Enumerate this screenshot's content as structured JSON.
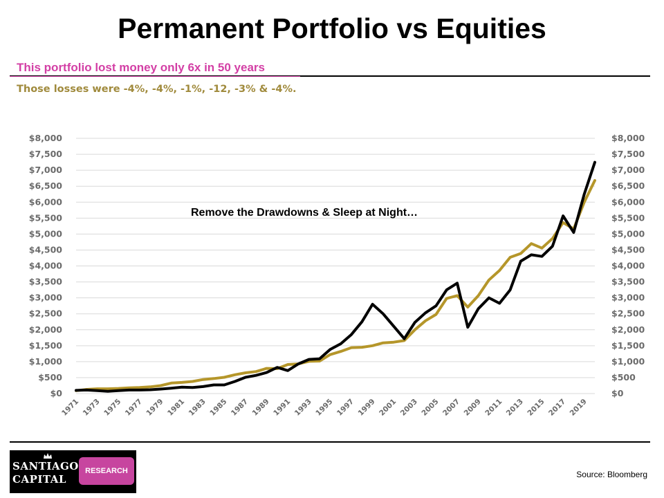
{
  "header": {
    "title": "Permanent Portfolio vs Equities",
    "subtitle": "This portfolio lost money only 6x in 50 years",
    "note": "Those losses were -4%, -4%, -1%,  -12, -3% & -4%."
  },
  "footer": {
    "logo_line1": "Santiago",
    "logo_line2": "Capital",
    "logo_badge": "RESEARCH",
    "source": "Source:  Bloomberg"
  },
  "colors": {
    "equities": "#000000",
    "permanent_portfolio": "#b5962a",
    "subtitle": "#d33fa5",
    "note": "#a08a3c"
  },
  "chart_data": {
    "type": "line",
    "annotation": "Remove the Drawdowns & Sleep at Night…",
    "x": [
      1971,
      1972,
      1973,
      1974,
      1975,
      1976,
      1977,
      1978,
      1979,
      1980,
      1981,
      1982,
      1983,
      1984,
      1985,
      1986,
      1987,
      1988,
      1989,
      1990,
      1991,
      1992,
      1993,
      1994,
      1995,
      1996,
      1997,
      1998,
      1999,
      2000,
      2001,
      2002,
      2003,
      2004,
      2005,
      2006,
      2007,
      2008,
      2009,
      2010,
      2011,
      2012,
      2013,
      2014,
      2015,
      2016,
      2017,
      2018,
      2019,
      2020
    ],
    "xticks": [
      "1971",
      "1973",
      "1975",
      "1977",
      "1979",
      "1981",
      "1983",
      "1985",
      "1987",
      "1989",
      "1991",
      "1993",
      "1995",
      "1997",
      "1999",
      "2001",
      "2003",
      "2005",
      "2007",
      "2009",
      "2011",
      "2013",
      "2015",
      "2017",
      "2019"
    ],
    "ylim": [
      0,
      8000
    ],
    "yticks": [
      "$0",
      "$500",
      "$1,000",
      "$1,500",
      "$2,000",
      "$2,500",
      "$3,000",
      "$3,500",
      "$4,000",
      "$4,500",
      "$5,000",
      "$5,500",
      "$6,000",
      "$6,500",
      "$7,000",
      "$7,500",
      "$8,000"
    ],
    "grid": true,
    "series": [
      {
        "values": [
          100,
          110,
          90,
          70,
          90,
          110,
          110,
          120,
          140,
          170,
          200,
          190,
          220,
          270,
          270,
          380,
          510,
          570,
          660,
          820,
          720,
          930,
          1070,
          1090,
          1380,
          1560,
          1850,
          2250,
          2800,
          2500,
          2110,
          1720,
          2230,
          2530,
          2750,
          3250,
          3460,
          2080,
          2660,
          3000,
          2830,
          3250,
          4150,
          4350,
          4300,
          4620,
          5570,
          5050,
          6250,
          7250
        ]
      },
      {
        "values": [
          90,
          130,
          150,
          150,
          160,
          180,
          190,
          210,
          250,
          330,
          350,
          380,
          440,
          470,
          510,
          590,
          650,
          690,
          790,
          780,
          910,
          930,
          1010,
          1020,
          1220,
          1320,
          1440,
          1450,
          1500,
          1590,
          1610,
          1660,
          2000,
          2280,
          2480,
          2980,
          3070,
          2710,
          3070,
          3560,
          3860,
          4270,
          4390,
          4700,
          4560,
          4860,
          5360,
          5160,
          6000,
          6680
        ]
      }
    ]
  }
}
